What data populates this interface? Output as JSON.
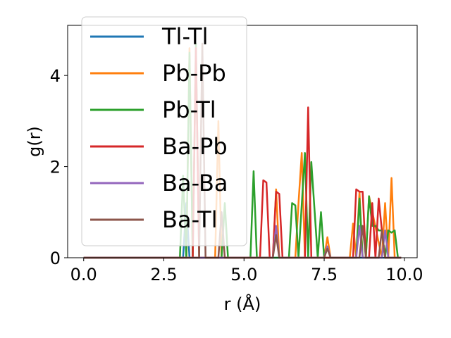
{
  "chart_data": {
    "type": "line",
    "title": "",
    "xlabel": "r (Å)",
    "ylabel": "g(r)",
    "xlim": [
      -0.5,
      10.4
    ],
    "ylim": [
      0,
      5.1
    ],
    "xticks": [
      0.0,
      2.5,
      5.0,
      7.5,
      10.0
    ],
    "xtick_labels": [
      "0.0",
      "2.5",
      "5.0",
      "7.5",
      "10.0"
    ],
    "yticks": [
      0,
      2,
      4
    ],
    "ytick_labels": [
      "0",
      "2",
      "4"
    ],
    "legend_position": "upper-left",
    "series": [
      {
        "name": "Tl-Tl",
        "color": "#1f77b4",
        "x": [
          0,
          3.0,
          3.1,
          3.2,
          3.3,
          3.4,
          9.9
        ],
        "y": [
          0,
          0,
          0,
          1.2,
          0,
          0,
          0
        ]
      },
      {
        "name": "Pb-Pb",
        "color": "#ff7f0e",
        "x": [
          0,
          3.2,
          3.3,
          3.4,
          4.0,
          4.1,
          4.2,
          4.3,
          5.9,
          6.0,
          6.1,
          6.6,
          6.7,
          6.8,
          6.9,
          7.5,
          7.6,
          7.7,
          8.3,
          8.4,
          8.5,
          8.6,
          8.7,
          8.8,
          8.9,
          9.3,
          9.4,
          9.5,
          9.6,
          9.7,
          9.8,
          9.9
        ],
        "y": [
          0,
          0,
          4.6,
          0,
          0,
          0,
          3.0,
          0,
          0,
          1.5,
          0,
          0,
          1.2,
          2.3,
          0,
          0,
          0.45,
          0,
          0,
          0.75,
          0,
          1.45,
          0,
          0,
          1.35,
          0,
          1.2,
          0,
          1.75,
          0,
          0,
          0
        ]
      },
      {
        "name": "Pb-Tl",
        "color": "#2ca02c",
        "x": [
          0,
          3.0,
          3.1,
          3.2,
          3.3,
          3.4,
          3.5,
          3.6,
          4.3,
          4.4,
          4.5,
          5.2,
          5.3,
          5.4,
          6.4,
          6.5,
          6.6,
          6.7,
          6.9,
          7.0,
          7.1,
          7.3,
          7.4,
          7.5,
          8.5,
          8.6,
          8.7,
          8.8,
          8.9,
          9.0,
          9.1,
          9.2,
          9.3,
          9.4,
          9.5,
          9.6,
          9.7,
          9.8,
          9.9
        ],
        "y": [
          0,
          0,
          1.8,
          0,
          4.5,
          0,
          4.7,
          0,
          0,
          1.2,
          0,
          0,
          1.9,
          0,
          0,
          1.2,
          1.15,
          0,
          2.3,
          0,
          2.1,
          0,
          1.0,
          0,
          0,
          1.3,
          0,
          0,
          1.35,
          0.7,
          0.7,
          0.6,
          0.6,
          0,
          0.6,
          0.55,
          0.6,
          0,
          0
        ]
      },
      {
        "name": "Ba-Pb",
        "color": "#d62728",
        "x": [
          0,
          3.4,
          3.5,
          3.6,
          5.5,
          5.6,
          5.7,
          5.8,
          5.9,
          6.0,
          6.1,
          6.2,
          6.3,
          6.9,
          7.0,
          7.1,
          8.4,
          8.5,
          8.6,
          8.7,
          8.8,
          8.9,
          9.0,
          9.1,
          9.2,
          9.3,
          9.4,
          9.5,
          9.9
        ],
        "y": [
          0,
          0,
          4.6,
          0,
          0,
          1.7,
          1.65,
          0,
          0,
          1.45,
          1.4,
          0,
          0,
          0,
          3.3,
          0,
          0,
          1.5,
          1.45,
          1.45,
          0,
          0,
          1.2,
          0,
          1.3,
          0.6,
          0,
          0,
          0
        ]
      },
      {
        "name": "Ba-Ba",
        "color": "#9467bd",
        "x": [
          0,
          5.9,
          6.0,
          6.1,
          7.5,
          7.6,
          7.7,
          8.5,
          8.6,
          8.7,
          9.3,
          9.4,
          9.5,
          9.9
        ],
        "y": [
          0,
          0,
          0.7,
          0,
          0,
          0.25,
          0,
          0,
          0.7,
          0,
          0,
          0.6,
          0,
          0
        ]
      },
      {
        "name": "Ba-Tl",
        "color": "#8c564b",
        "x": [
          0,
          3.4,
          3.5,
          3.6,
          3.7,
          3.8,
          4.2,
          4.3,
          4.4,
          5.9,
          6.0,
          6.1,
          7.5,
          7.6,
          7.7,
          8.6,
          8.7,
          8.8,
          9.2,
          9.3,
          9.4,
          9.9
        ],
        "y": [
          0,
          0,
          0,
          0,
          4.7,
          0,
          0,
          1.0,
          0,
          0,
          0.5,
          0,
          0,
          0.2,
          0,
          0,
          0.7,
          0,
          0,
          0.6,
          0,
          0
        ]
      }
    ]
  }
}
